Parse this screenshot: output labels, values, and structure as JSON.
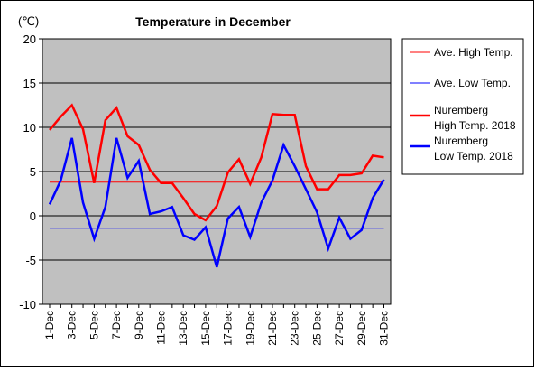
{
  "chart_data": {
    "type": "line",
    "title": "Temperature in December",
    "unit_label": "(℃)",
    "ylim": [
      -10,
      20
    ],
    "y_ticks": [
      20,
      15,
      10,
      5,
      0,
      -5,
      -10
    ],
    "x_tick_labels": [
      "1-Dec",
      "3-Dec",
      "5-Dec",
      "7-Dec",
      "9-Dec",
      "11-Dec",
      "13-Dec",
      "15-Dec",
      "17-Dec",
      "19-Dec",
      "21-Dec",
      "23-Dec",
      "25-Dec",
      "27-Dec",
      "29-Dec",
      "31-Dec"
    ],
    "x": [
      1,
      2,
      3,
      4,
      5,
      6,
      7,
      8,
      9,
      10,
      11,
      12,
      13,
      14,
      15,
      16,
      17,
      18,
      19,
      20,
      21,
      22,
      23,
      24,
      25,
      26,
      27,
      28,
      29,
      30,
      31
    ],
    "grid": true,
    "legend_position": "right",
    "series": [
      {
        "name": "Ave. High Temp.",
        "color": "#ff0000",
        "width": 1,
        "constant": 3.8
      },
      {
        "name": "Ave. Low Temp.",
        "color": "#0000ff",
        "width": 1,
        "constant": -1.4
      },
      {
        "name_lines": [
          "Nuremberg",
          "High Temp. 2018"
        ],
        "color": "#ff0000",
        "width": 2.5,
        "values": [
          9.7,
          11.2,
          12.5,
          9.8,
          3.7,
          10.8,
          12.2,
          9.0,
          8.0,
          5.2,
          3.7,
          3.7,
          2.0,
          0.2,
          -0.5,
          1.1,
          4.9,
          6.4,
          3.6,
          6.6,
          11.5,
          11.4,
          11.4,
          5.6,
          3.0,
          3.0,
          4.6,
          4.6,
          4.8,
          6.8,
          6.6
        ]
      },
      {
        "name_lines": [
          "Nuremberg",
          "Low Temp. 2018"
        ],
        "color": "#0000ff",
        "width": 2.5,
        "values": [
          1.3,
          4.0,
          8.8,
          1.5,
          -2.6,
          1.0,
          8.8,
          4.3,
          6.2,
          0.2,
          0.5,
          1.0,
          -2.2,
          -2.7,
          -1.3,
          -5.8,
          -0.3,
          1.0,
          -2.4,
          1.5,
          4.0,
          8.0,
          5.6,
          3.0,
          0.4,
          -3.7,
          -0.2,
          -2.6,
          -1.6,
          2.0,
          4.1
        ]
      }
    ]
  }
}
